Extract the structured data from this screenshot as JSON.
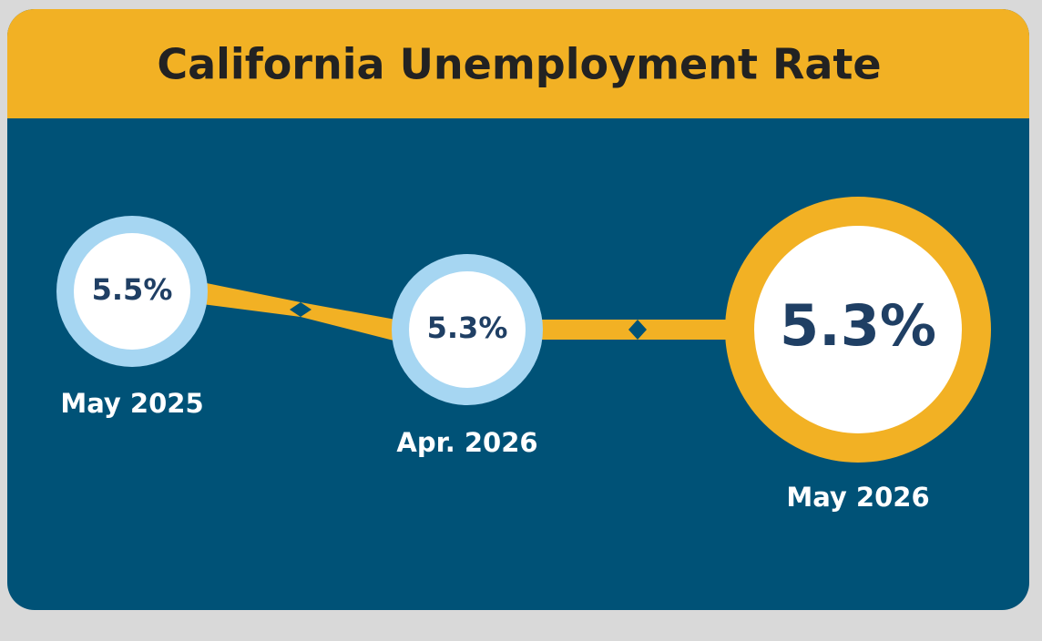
{
  "title": "California Unemployment Rate",
  "items": [
    {
      "value": "5.5%",
      "date": "May 2025"
    },
    {
      "value": "5.3%",
      "date": "Apr. 2026"
    },
    {
      "value": "5.3%",
      "date": "May 2026"
    }
  ]
}
